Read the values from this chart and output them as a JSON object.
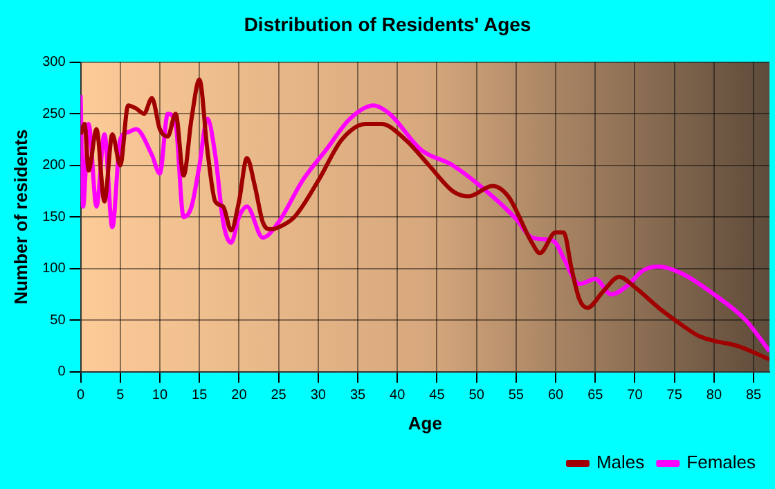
{
  "chart_data": {
    "type": "line",
    "title": "Distribution of Residents' Ages",
    "xlabel": "Age",
    "ylabel": "Number of residents",
    "xlim": [
      0,
      87
    ],
    "xticks": [
      0,
      5,
      10,
      15,
      20,
      25,
      30,
      35,
      40,
      45,
      50,
      55,
      60,
      65,
      70,
      75,
      80,
      85
    ],
    "ylim": [
      0,
      300
    ],
    "yticks": [
      0,
      50,
      100,
      150,
      200,
      250,
      300
    ],
    "grid": true,
    "legend": "bottom right",
    "marker": "none",
    "series": [
      {
        "name": "Males",
        "color": "#a00000",
        "x": [
          0,
          0.5,
          1,
          2,
          3,
          4,
          5,
          6,
          7,
          8,
          9,
          10,
          11,
          12,
          13,
          14,
          15,
          16,
          17,
          18,
          19,
          20,
          21,
          22,
          23,
          24,
          25,
          27,
          30,
          33,
          36,
          38,
          41,
          44,
          47,
          49,
          52,
          54,
          57,
          58,
          60,
          61,
          62,
          63,
          64,
          66,
          68,
          70,
          73,
          76,
          78,
          80,
          83,
          87
        ],
        "values": [
          230,
          240,
          195,
          235,
          165,
          230,
          200,
          258,
          255,
          250,
          265,
          235,
          228,
          250,
          190,
          245,
          283,
          215,
          165,
          160,
          137,
          165,
          207,
          180,
          145,
          138,
          140,
          150,
          185,
          225,
          240,
          240,
          225,
          200,
          175,
          170,
          180,
          170,
          125,
          115,
          135,
          135,
          100,
          70,
          62,
          78,
          92,
          82,
          62,
          45,
          35,
          30,
          25,
          12
        ]
      },
      {
        "name": "Females",
        "color": "#ff00ff",
        "x": [
          0,
          0.3,
          1,
          2,
          3,
          4,
          5,
          6,
          7,
          9,
          10,
          11,
          12,
          13,
          14,
          15,
          16,
          17,
          18,
          19,
          20,
          21,
          23,
          25,
          28,
          31,
          34,
          37,
          39,
          43,
          47,
          52,
          55,
          57,
          59,
          60,
          61,
          63,
          65,
          67,
          69,
          71,
          73,
          76,
          80,
          84,
          87
        ],
        "values": [
          268,
          160,
          240,
          160,
          230,
          140,
          225,
          232,
          235,
          210,
          192,
          250,
          240,
          150,
          160,
          200,
          245,
          210,
          145,
          125,
          150,
          160,
          130,
          145,
          185,
          215,
          245,
          258,
          250,
          215,
          200,
          170,
          148,
          130,
          128,
          125,
          110,
          85,
          90,
          75,
          83,
          98,
          102,
          95,
          75,
          50,
          20
        ]
      }
    ]
  }
}
